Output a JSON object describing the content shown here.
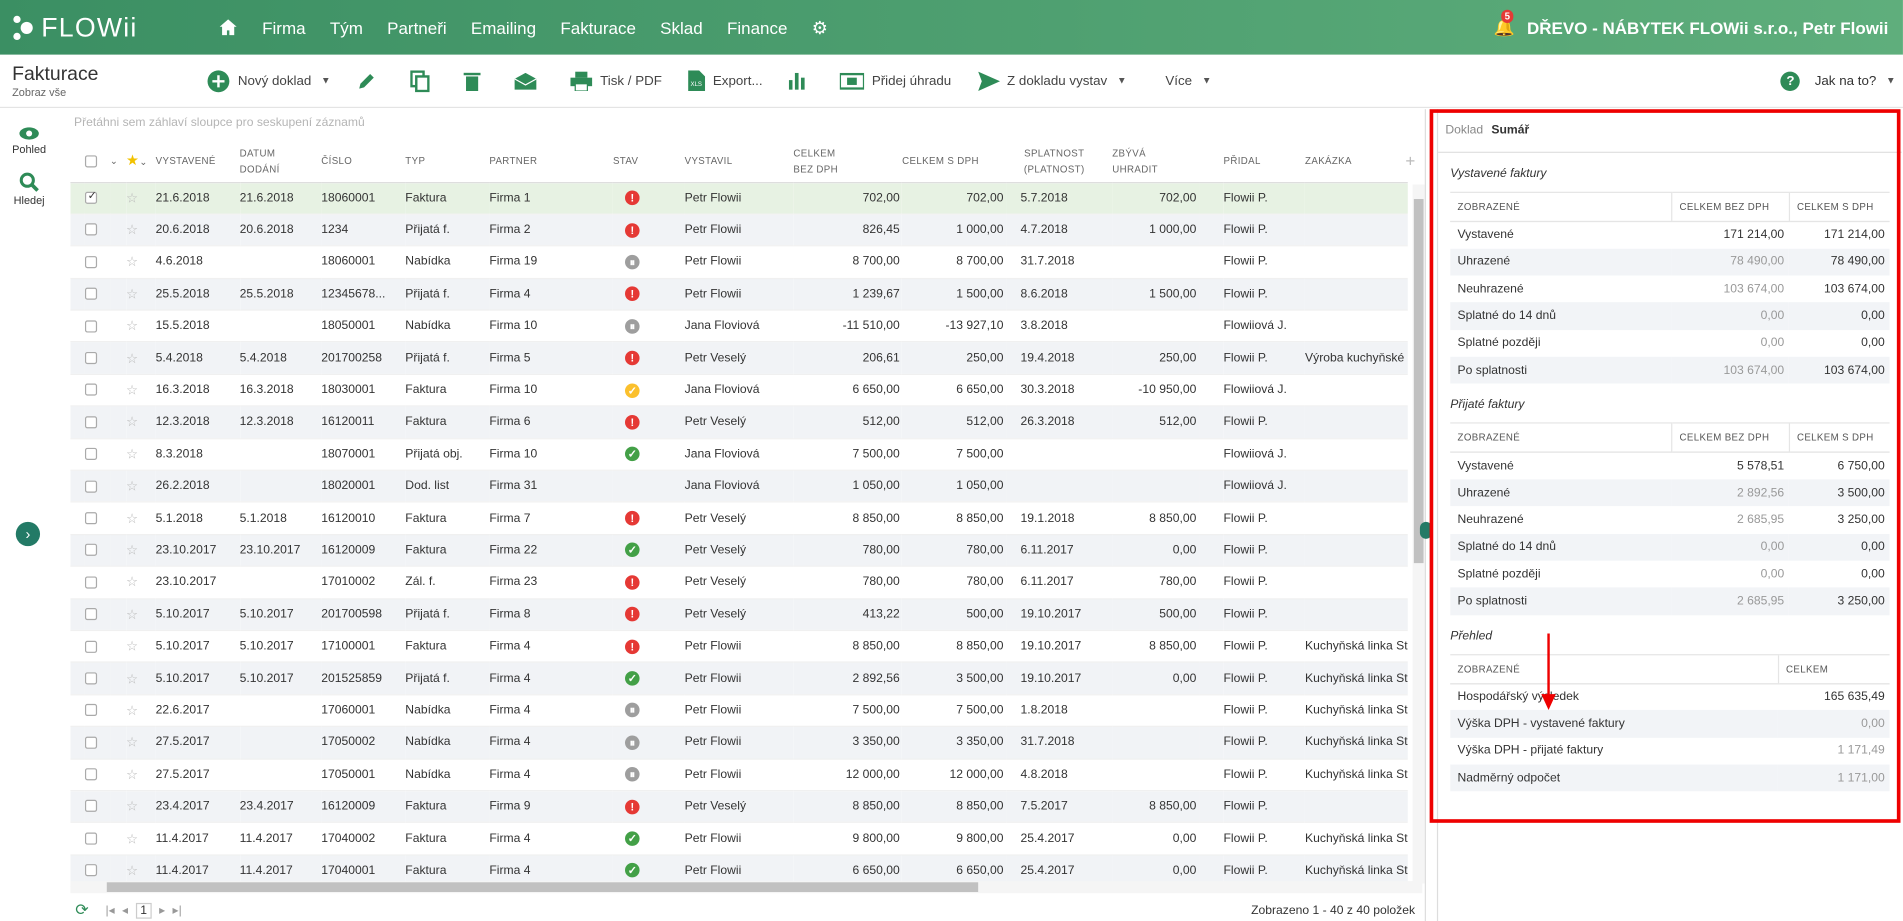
{
  "app": {
    "name": "FLOWii"
  },
  "nav": {
    "items": [
      "Firma",
      "Tým",
      "Partneři",
      "Emailing",
      "Fakturace",
      "Sklad",
      "Finance"
    ],
    "notification_count": "5",
    "company_user": "DŘEVO - NÁBYTEK FLOWii s.r.o., Petr Flowii"
  },
  "page": {
    "title": "Fakturace",
    "subtitle": "Zobraz vše"
  },
  "toolbar": {
    "new_doc": "Nový doklad",
    "print": "Tisk / PDF",
    "export": "Export...",
    "add_payment": "Přidej úhradu",
    "issue_from": "Z dokladu vystav",
    "more": "Více",
    "help": "Jak na to?"
  },
  "side": {
    "view": "Pohled",
    "search": "Hledej"
  },
  "grid": {
    "group_hint": "Přetáhni sem záhlaví sloupce pro seskupení záznamů",
    "columns": [
      "VYSTAVENÉ",
      "DATUM DODÁNÍ",
      "ČÍSLO",
      "TYP",
      "PARTNER",
      "STAV",
      "VYSTAVIL",
      "CELKEM BEZ DPH",
      "CELKEM S DPH",
      "SPLATNOST (PLATNOST)",
      "ZBÝVÁ UHRADIT",
      "PŘIDAL",
      "ZAKÁZKA"
    ],
    "rows": [
      [
        "21.6.2018",
        "21.6.2018",
        "18060001",
        "Faktura",
        "Firma 1",
        "red",
        "Petr Flowii",
        "702,00",
        "702,00",
        "5.7.2018",
        "702,00",
        "Flowii P.",
        "",
        true
      ],
      [
        "20.6.2018",
        "20.6.2018",
        "1234",
        "Přijatá f.",
        "Firma 2",
        "red",
        "Petr Flowii",
        "826,45",
        "1 000,00",
        "4.7.2018",
        "1 000,00",
        "Flowii P.",
        "",
        true
      ],
      [
        "4.6.2018",
        "",
        "18060001",
        "Nabídka",
        "Firma 19",
        "grey",
        "Petr Flowii",
        "8 700,00",
        "8 700,00",
        "31.7.2018",
        "",
        "Flowii P.",
        "",
        false
      ],
      [
        "25.5.2018",
        "25.5.2018",
        "12345678...",
        "Přijatá f.",
        "Firma 4",
        "red",
        "Petr Flowii",
        "1 239,67",
        "1 500,00",
        "8.6.2018",
        "1 500,00",
        "Flowii P.",
        "",
        true
      ],
      [
        "15.5.2018",
        "",
        "18050001",
        "Nabídka",
        "Firma 10",
        "grey",
        "Jana Floviová",
        "-11 510,00",
        "-13 927,10",
        "3.8.2018",
        "",
        "Flowiiová J.",
        "",
        false
      ],
      [
        "5.4.2018",
        "5.4.2018",
        "201700258",
        "Přijatá f.",
        "Firma 5",
        "red",
        "Petr Veselý",
        "206,61",
        "250,00",
        "19.4.2018",
        "250,00",
        "Flowii P.",
        "Výroba kuchyňské",
        true
      ],
      [
        "16.3.2018",
        "16.3.2018",
        "18030001",
        "Faktura",
        "Firma 10",
        "yellow",
        "Jana Floviová",
        "6 650,00",
        "6 650,00",
        "30.3.2018",
        "-10 950,00",
        "Flowiiová J.",
        "",
        false
      ],
      [
        "12.3.2018",
        "12.3.2018",
        "16120011",
        "Faktura",
        "Firma 6",
        "red",
        "Petr Veselý",
        "512,00",
        "512,00",
        "26.3.2018",
        "512,00",
        "Flowii P.",
        "",
        true
      ],
      [
        "8.3.2018",
        "",
        "18070001",
        "Přijatá obj.",
        "Firma 10",
        "green",
        "Jana Floviová",
        "7 500,00",
        "7 500,00",
        "",
        "",
        "Flowiiová J.",
        "",
        false
      ],
      [
        "26.2.2018",
        "",
        "18020001",
        "Dod. list",
        "Firma 31",
        "",
        "Jana Floviová",
        "1 050,00",
        "1 050,00",
        "",
        "",
        "Flowiiová J.",
        "",
        false
      ],
      [
        "5.1.2018",
        "5.1.2018",
        "16120010",
        "Faktura",
        "Firma 7",
        "red",
        "Petr Veselý",
        "8 850,00",
        "8 850,00",
        "19.1.2018",
        "8 850,00",
        "Flowii P.",
        "",
        true
      ],
      [
        "23.10.2017",
        "23.10.2017",
        "16120009",
        "Faktura",
        "Firma 22",
        "green",
        "Petr Veselý",
        "780,00",
        "780,00",
        "6.11.2017",
        "0,00",
        "Flowii P.",
        "",
        false
      ],
      [
        "23.10.2017",
        "",
        "17010002",
        "Zál. f.",
        "Firma 23",
        "red",
        "Petr Veselý",
        "780,00",
        "780,00",
        "6.11.2017",
        "780,00",
        "Flowii P.",
        "",
        true
      ],
      [
        "5.10.2017",
        "5.10.2017",
        "201700598",
        "Přijatá f.",
        "Firma 8",
        "red",
        "Petr Veselý",
        "413,22",
        "500,00",
        "19.10.2017",
        "500,00",
        "Flowii P.",
        "",
        true
      ],
      [
        "5.10.2017",
        "5.10.2017",
        "17100001",
        "Faktura",
        "Firma 4",
        "red",
        "Petr Flowii",
        "8 850,00",
        "8 850,00",
        "19.10.2017",
        "8 850,00",
        "Flowii P.",
        "Kuchyňská linka St",
        true
      ],
      [
        "5.10.2017",
        "5.10.2017",
        "201525859",
        "Přijatá f.",
        "Firma 4",
        "green",
        "Petr Flowii",
        "2 892,56",
        "3 500,00",
        "19.10.2017",
        "0,00",
        "Flowii P.",
        "Kuchyňská linka St",
        false
      ],
      [
        "22.6.2017",
        "",
        "17060001",
        "Nabídka",
        "Firma 4",
        "grey",
        "Petr Flowii",
        "7 500,00",
        "7 500,00",
        "1.8.2018",
        "",
        "Flowii P.",
        "Kuchyňská linka St",
        false
      ],
      [
        "27.5.2017",
        "",
        "17050002",
        "Nabídka",
        "Firma 4",
        "grey",
        "Petr Flowii",
        "3 350,00",
        "3 350,00",
        "31.7.2018",
        "",
        "Flowii P.",
        "Kuchyňská linka St",
        false
      ],
      [
        "27.5.2017",
        "",
        "17050001",
        "Nabídka",
        "Firma 4",
        "grey",
        "Petr Flowii",
        "12 000,00",
        "12 000,00",
        "4.8.2018",
        "",
        "Flowii P.",
        "Kuchyňská linka St",
        false
      ],
      [
        "23.4.2017",
        "23.4.2017",
        "16120009",
        "Faktura",
        "Firma 9",
        "red",
        "Petr Veselý",
        "8 850,00",
        "8 850,00",
        "7.5.2017",
        "8 850,00",
        "Flowii P.",
        "",
        true
      ],
      [
        "11.4.2017",
        "11.4.2017",
        "17040002",
        "Faktura",
        "Firma 4",
        "green",
        "Petr Flowii",
        "9 800,00",
        "9 800,00",
        "25.4.2017",
        "0,00",
        "Flowii P.",
        "Kuchyňská linka St",
        false
      ],
      [
        "11.4.2017",
        "11.4.2017",
        "17040001",
        "Faktura",
        "Firma 4",
        "green",
        "Petr Flowii",
        "6 650,00",
        "6 650,00",
        "25.4.2017",
        "0,00",
        "Flowii P.",
        "Kuchyňská linka St",
        false
      ]
    ],
    "footer": "Zobrazeno 1 - 40 z 40 položek",
    "page": "1"
  },
  "panel": {
    "tab_doc": "Doklad",
    "tab_sum": "Sumář",
    "sections": [
      {
        "title": "Vystavené faktury",
        "cols": [
          "ZOBRAZENÉ",
          "CELKEM BEZ DPH",
          "CELKEM S DPH"
        ],
        "rows": [
          [
            "Vystavené",
            "171 214,00",
            "171 214,00",
            false
          ],
          [
            "Uhrazené",
            "78 490,00",
            "78 490,00",
            true
          ],
          [
            "Neuhrazené",
            "103 674,00",
            "103 674,00",
            true
          ],
          [
            "Splatné do 14 dnů",
            "0,00",
            "0,00",
            true
          ],
          [
            "Splatné později",
            "0,00",
            "0,00",
            true
          ],
          [
            "Po splatnosti",
            "103 674,00",
            "103 674,00",
            true
          ]
        ]
      },
      {
        "title": "Přijaté faktury",
        "cols": [
          "ZOBRAZENÉ",
          "CELKEM BEZ DPH",
          "CELKEM S DPH"
        ],
        "rows": [
          [
            "Vystavené",
            "5 578,51",
            "6 750,00",
            false
          ],
          [
            "Uhrazené",
            "2 892,56",
            "3 500,00",
            true
          ],
          [
            "Neuhrazené",
            "2 685,95",
            "3 250,00",
            true
          ],
          [
            "Splatné do 14 dnů",
            "0,00",
            "0,00",
            true
          ],
          [
            "Splatné později",
            "0,00",
            "0,00",
            true
          ],
          [
            "Po splatnosti",
            "2 685,95",
            "3 250,00",
            true
          ]
        ]
      }
    ],
    "overview": {
      "title": "Přehled",
      "cols": [
        "ZOBRAZENÉ",
        "CELKEM"
      ],
      "rows": [
        [
          "Hospodářský výsledek",
          "165 635,49",
          false
        ],
        [
          "Výška DPH - vystavené faktury",
          "0,00",
          true
        ],
        [
          "Výška DPH - přijaté faktury",
          "1 171,49",
          true
        ],
        [
          "Nadměrný odpočet",
          "1 171,00",
          true
        ]
      ]
    }
  },
  "colors": {
    "accent": "#3b8f63",
    "highlight": "#e00000",
    "overdue": "#e53935"
  }
}
